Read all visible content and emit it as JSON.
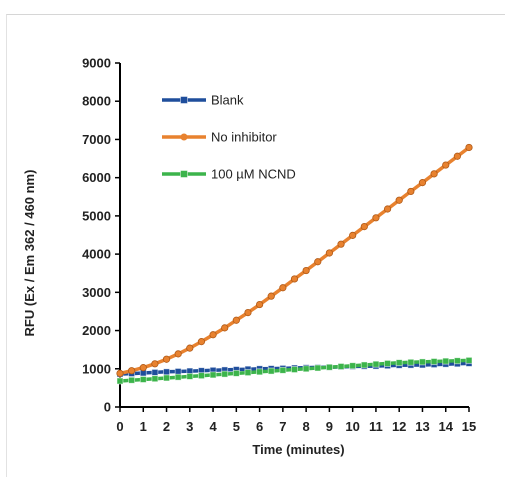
{
  "chart_data": {
    "type": "line",
    "title": "",
    "xlabel": "Time (minutes)",
    "ylabel": "RFU (Ex / Em 362 / 460 nm)",
    "xlim": [
      0,
      15
    ],
    "ylim": [
      0,
      9000
    ],
    "x_ticks": [
      "0",
      "1",
      "2",
      "3",
      "4",
      "5",
      "6",
      "7",
      "8",
      "9",
      "10",
      "11",
      "12",
      "13",
      "14",
      "15"
    ],
    "y_ticks": [
      "0",
      "1000",
      "2000",
      "3000",
      "4000",
      "5000",
      "6000",
      "7000",
      "8000",
      "9000"
    ],
    "grid": false,
    "legend_position": "top-left",
    "x": [
      0,
      0.5,
      1,
      1.5,
      2,
      2.5,
      3,
      3.5,
      4,
      4.5,
      5,
      5.5,
      6,
      6.5,
      7,
      7.5,
      8,
      8.5,
      9,
      9.5,
      10,
      10.5,
      11,
      11.5,
      12,
      12.5,
      13,
      13.5,
      14,
      14.5,
      15
    ],
    "series": [
      {
        "name": "Blank",
        "color": "#1f4e9c",
        "marker": "square",
        "values": [
          860,
          875,
          890,
          905,
          920,
          930,
          940,
          950,
          960,
          970,
          980,
          990,
          1000,
          1005,
          1010,
          1020,
          1030,
          1035,
          1040,
          1050,
          1060,
          1065,
          1070,
          1080,
          1090,
          1095,
          1100,
          1110,
          1120,
          1130,
          1140
        ]
      },
      {
        "name": "No inhibitor",
        "color": "#e8822f",
        "marker": "circle",
        "values": [
          880,
          950,
          1030,
          1130,
          1250,
          1390,
          1540,
          1710,
          1890,
          2070,
          2270,
          2470,
          2680,
          2900,
          3120,
          3350,
          3570,
          3800,
          4030,
          4260,
          4490,
          4720,
          4950,
          5180,
          5410,
          5640,
          5870,
          6100,
          6330,
          6560,
          6790
        ]
      },
      {
        "name": "100 µM NCND",
        "color": "#3cb44b",
        "marker": "square",
        "values": [
          680,
          700,
          720,
          740,
          760,
          780,
          800,
          820,
          840,
          860,
          880,
          900,
          920,
          940,
          960,
          980,
          1000,
          1020,
          1040,
          1060,
          1080,
          1100,
          1120,
          1140,
          1160,
          1170,
          1180,
          1190,
          1200,
          1210,
          1220
        ]
      }
    ]
  }
}
